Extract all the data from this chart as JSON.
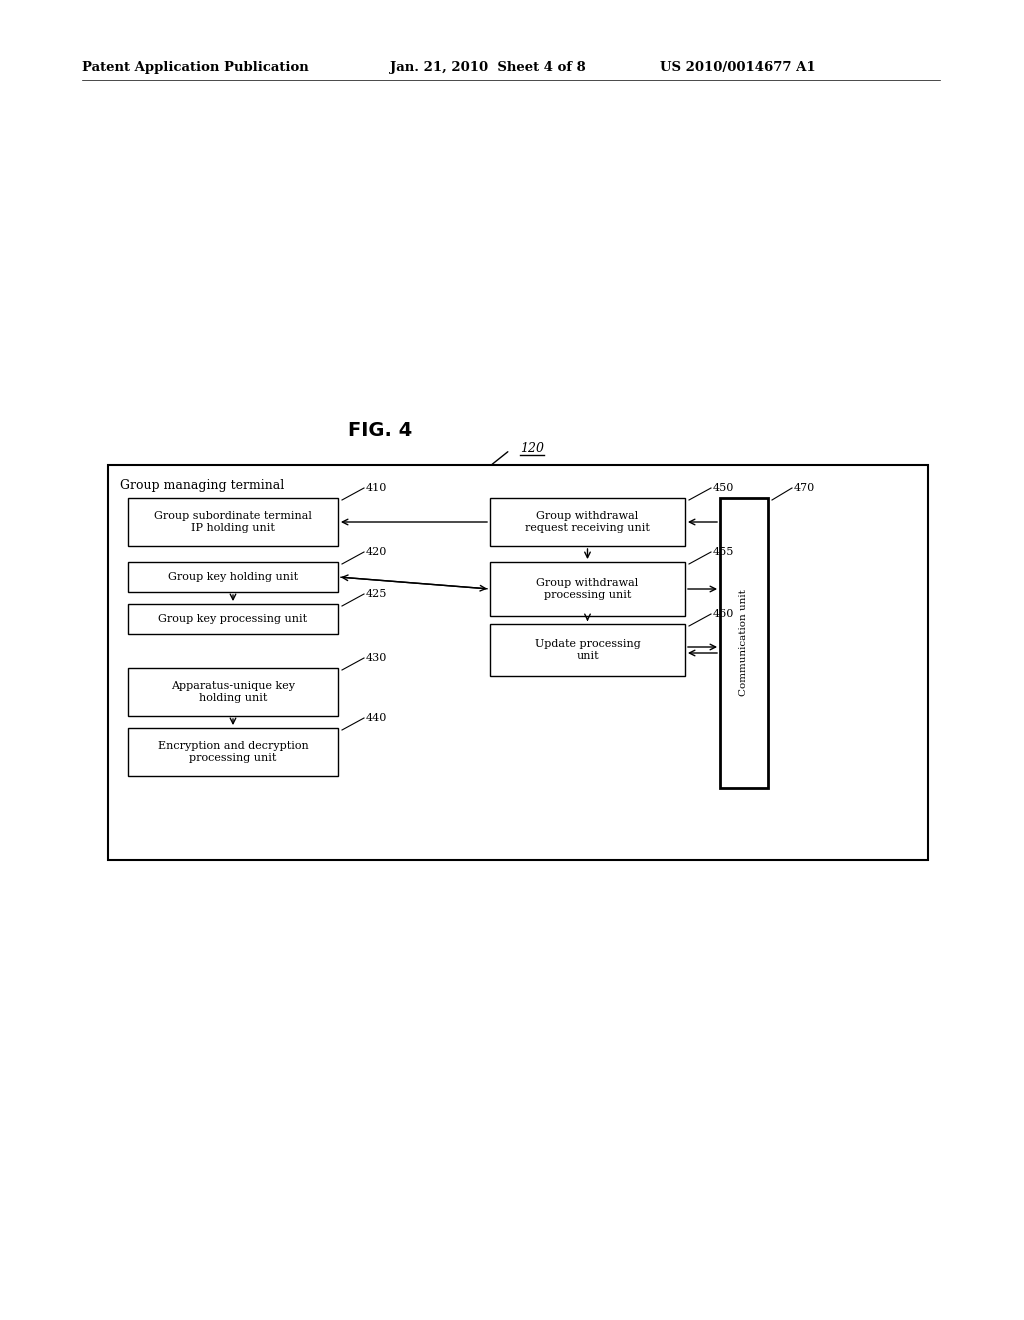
{
  "bg_color": "#ffffff",
  "header_left": "Patent Application Publication",
  "header_mid": "Jan. 21, 2010  Sheet 4 of 8",
  "header_right": "US 2010/0014677 A1",
  "fig_label": "FIG. 4",
  "outer_box_label": "120",
  "inner_box_label": "Group managing terminal",
  "comm_label": "Communication unit",
  "comm_ref": "470",
  "left_boxes": [
    {
      "label": "Group subordinate terminal\nIP holding unit",
      "ref": "410",
      "row": 0
    },
    {
      "label": "Group key holding unit",
      "ref": "420",
      "row": 1
    },
    {
      "label": "Group key processing unit",
      "ref": "425",
      "row": 2
    },
    {
      "label": "Apparatus-unique key\nholding unit",
      "ref": "430",
      "row": 3
    },
    {
      "label": "Encryption and decryption\nprocessing unit",
      "ref": "440",
      "row": 4
    }
  ],
  "right_boxes": [
    {
      "label": "Group withdrawal\nrequest receiving unit",
      "ref": "450",
      "row": 0
    },
    {
      "label": "Group withdrawal\nprocessing unit",
      "ref": "455",
      "row": 1
    },
    {
      "label": "Update processing\nunit",
      "ref": "460",
      "row": 2
    }
  ]
}
